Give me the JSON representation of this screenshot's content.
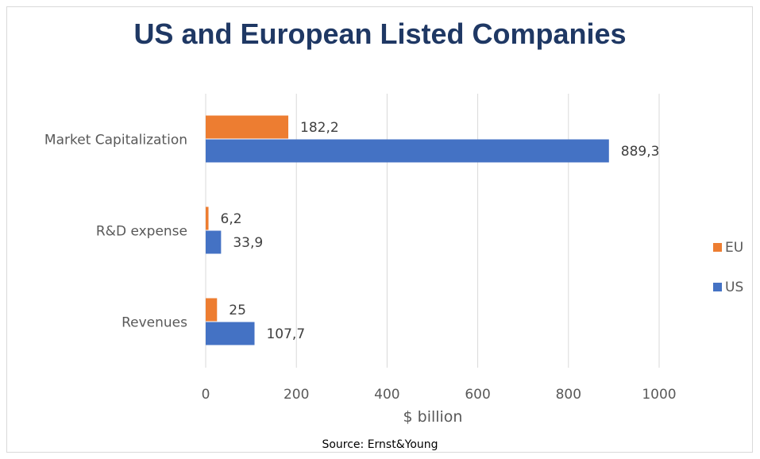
{
  "chart_data": {
    "type": "bar",
    "orientation": "horizontal",
    "title": "US and European Listed Companies",
    "xlabel": "$ billion",
    "ylabel": "",
    "categories": [
      "Market Capitalization",
      "R&D expense",
      "Revenues"
    ],
    "series": [
      {
        "name": "EU",
        "color": "#ed7d31",
        "values": [
          182.2,
          6.2,
          25
        ],
        "labels": [
          "182,2",
          "6,2",
          "25"
        ]
      },
      {
        "name": "US",
        "color": "#4472c4",
        "values": [
          889.3,
          33.9,
          107.7
        ],
        "labels": [
          "889,3",
          "33,9",
          "107,7"
        ]
      }
    ],
    "xlim": [
      0,
      1000
    ],
    "xticks": [
      0,
      200,
      400,
      600,
      800,
      1000
    ],
    "grid": true,
    "legend_position": "right",
    "source": "Source: Ernst&Young"
  }
}
